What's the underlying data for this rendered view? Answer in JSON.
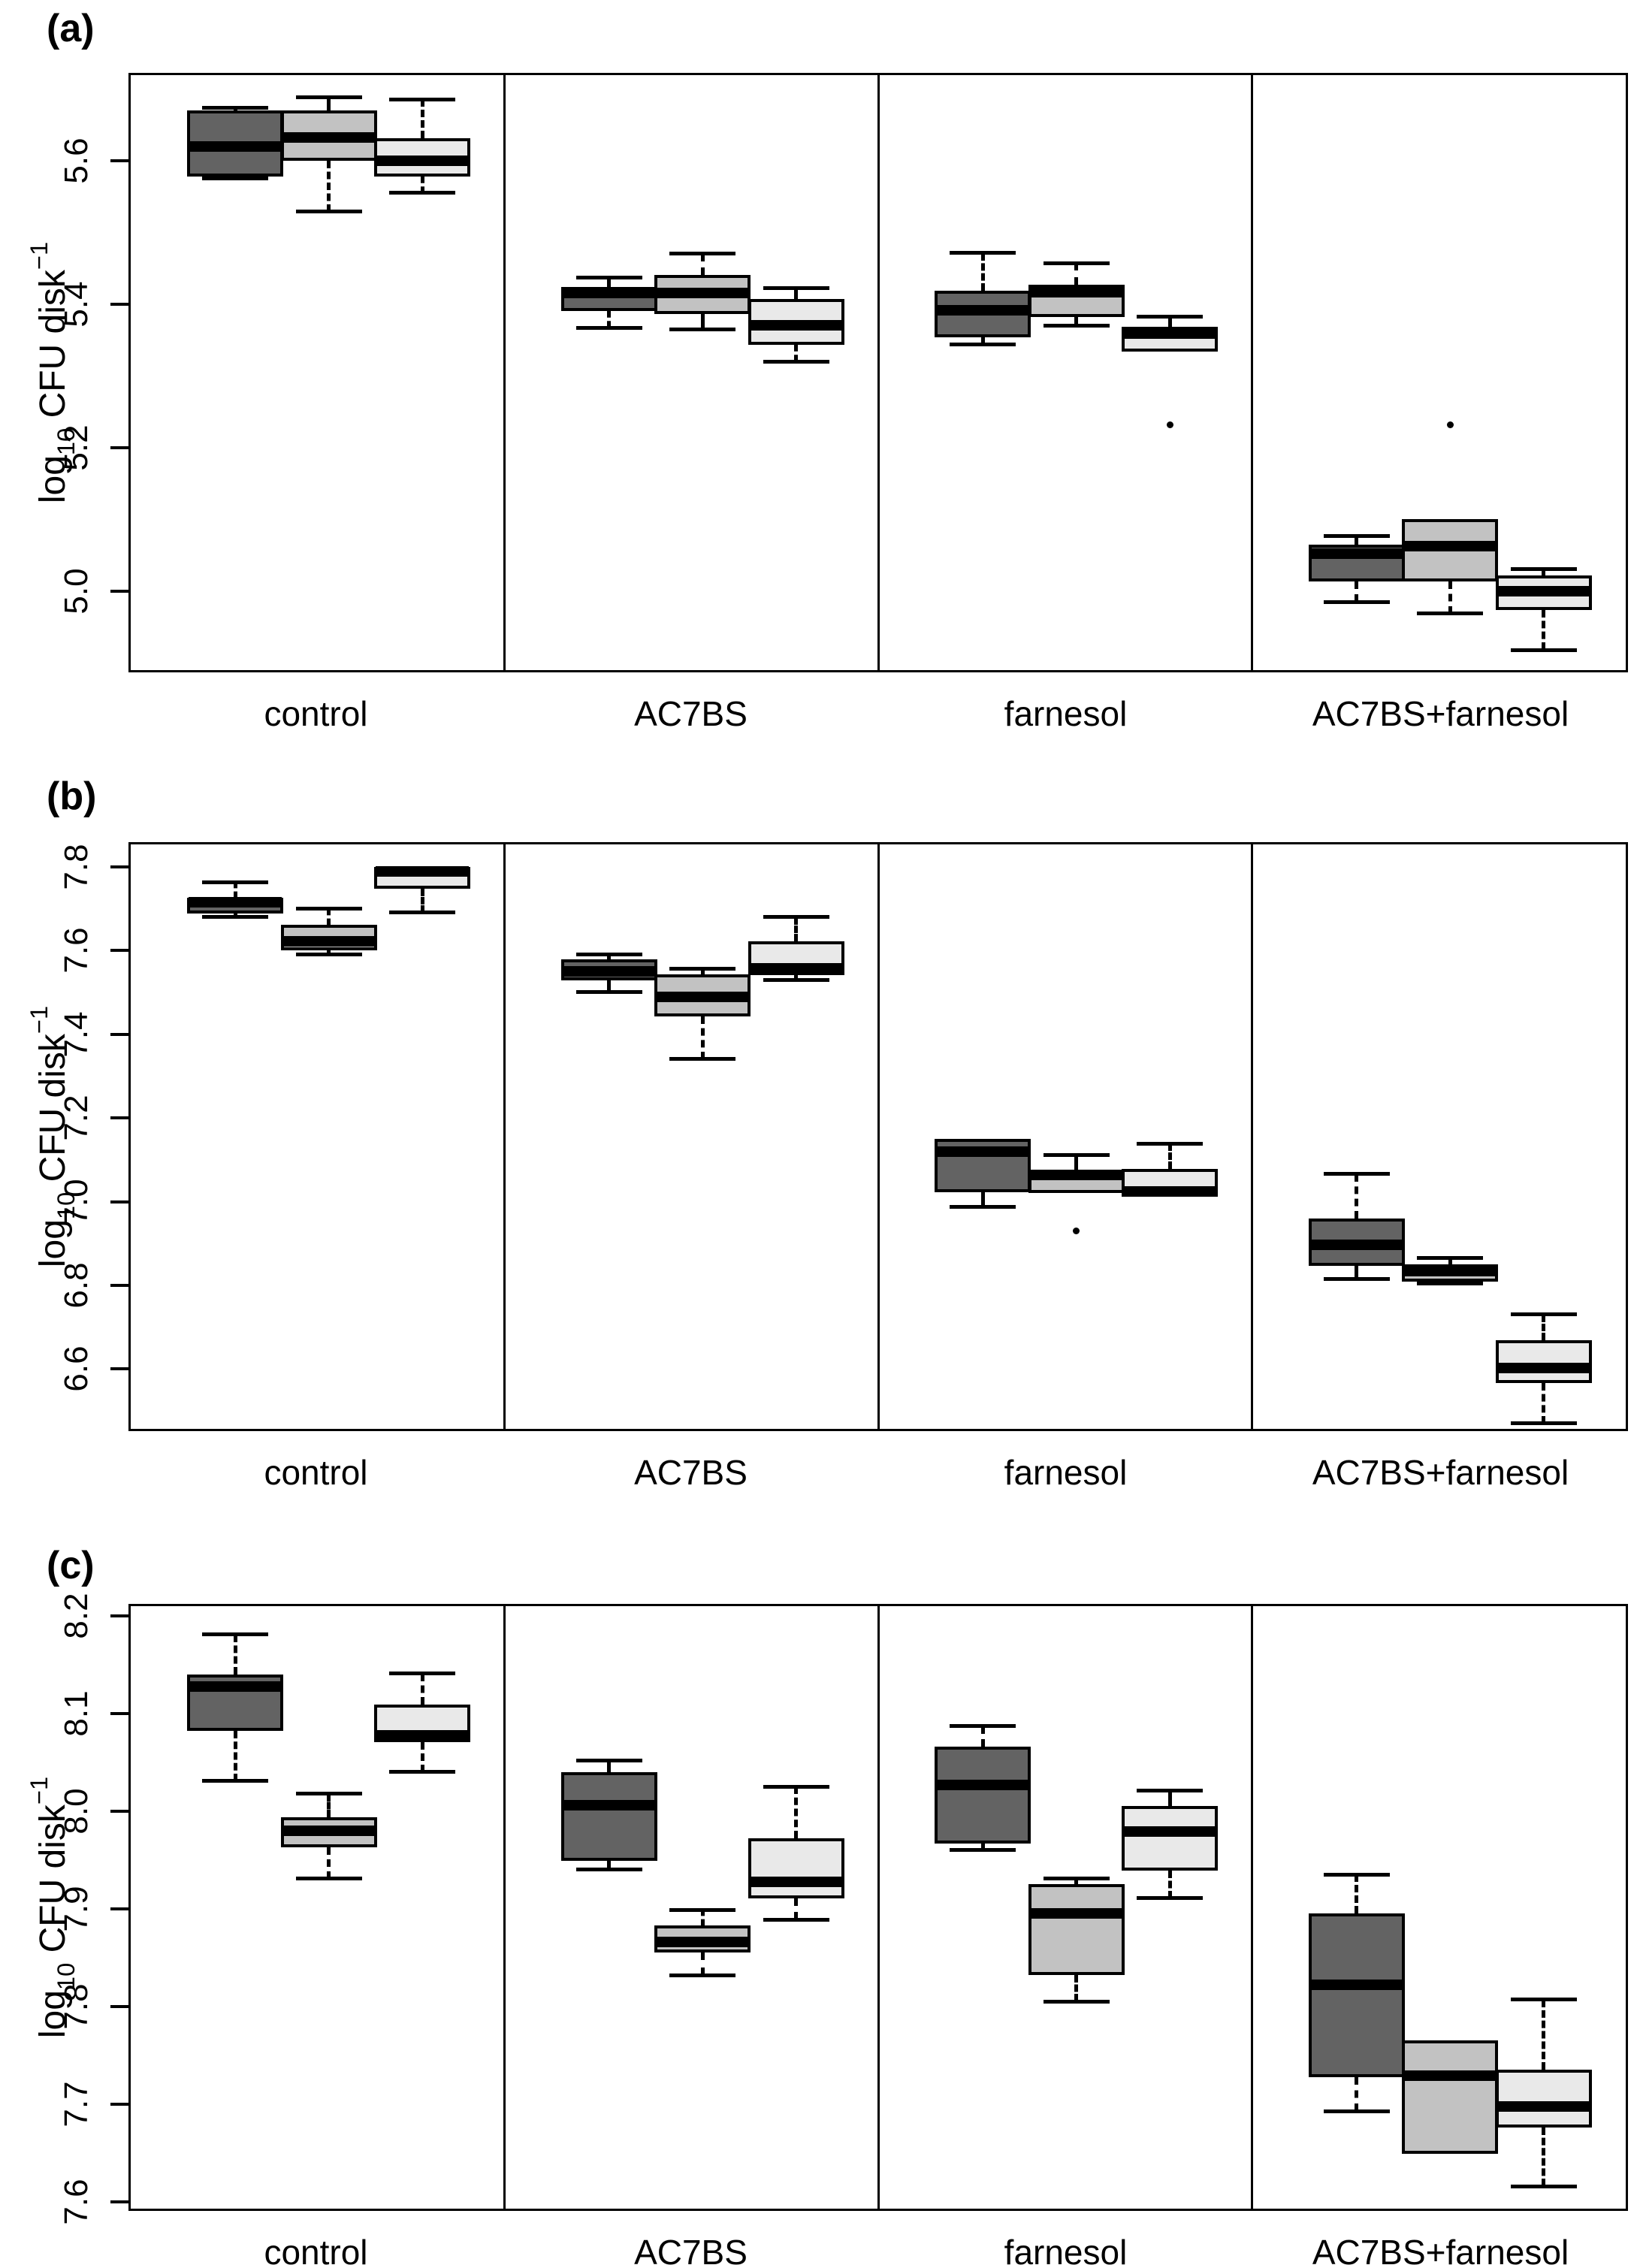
{
  "figure": {
    "panels": [
      "(a)",
      "(b)",
      "(c)"
    ],
    "ylabel": {
      "base": "log",
      "sub": "10",
      "mid": " CFU disk",
      "sup": "−1"
    },
    "axis_color": "#000000",
    "background": "#ffffff"
  },
  "chart_data": [
    {
      "type": "box",
      "panel_label": "(a)",
      "ylabel": "log10 CFU disk^-1",
      "categories": [
        "control",
        "AC7BS",
        "farnesol",
        "AC7BS+farnesol"
      ],
      "series": [
        "dark-gray",
        "medium-gray",
        "light-gray"
      ],
      "series_colors": [
        "#636363",
        "#c2c2c2",
        "#e9e9e9"
      ],
      "ylim": [
        4.89,
        5.719
      ],
      "yticks": [
        5.0,
        5.2,
        5.4,
        5.6
      ],
      "grid": false,
      "groups": [
        {
          "category": "control",
          "boxes": [
            {
              "series": "dark-gray",
              "min": 5.575,
              "q1": 5.578,
              "median": 5.62,
              "q3": 5.67,
              "max": 5.673,
              "outliers": []
            },
            {
              "series": "medium-gray",
              "min": 5.529,
              "q1": 5.6,
              "median": 5.632,
              "q3": 5.67,
              "max": 5.688,
              "outliers": []
            },
            {
              "series": "light-gray",
              "min": 5.555,
              "q1": 5.578,
              "median": 5.6,
              "q3": 5.631,
              "max": 5.685,
              "outliers": []
            }
          ]
        },
        {
          "category": "AC7BS",
          "boxes": [
            {
              "series": "dark-gray",
              "min": 5.367,
              "q1": 5.39,
              "median": 5.415,
              "q3": 5.424,
              "max": 5.437,
              "outliers": []
            },
            {
              "series": "medium-gray",
              "min": 5.365,
              "q1": 5.386,
              "median": 5.415,
              "q3": 5.441,
              "max": 5.47,
              "outliers": []
            },
            {
              "series": "light-gray",
              "min": 5.32,
              "q1": 5.343,
              "median": 5.37,
              "q3": 5.407,
              "max": 5.422,
              "outliers": []
            }
          ]
        },
        {
          "category": "farnesol",
          "boxes": [
            {
              "series": "dark-gray",
              "min": 5.344,
              "q1": 5.354,
              "median": 5.391,
              "q3": 5.419,
              "max": 5.471,
              "outliers": []
            },
            {
              "series": "medium-gray",
              "min": 5.37,
              "q1": 5.382,
              "median": 5.417,
              "q3": 5.427,
              "max": 5.457,
              "outliers": []
            },
            {
              "series": "light-gray",
              "min": 5.334,
              "q1": 5.334,
              "median": 5.359,
              "q3": 5.368,
              "max": 5.382,
              "outliers": [
                5.232
              ]
            }
          ]
        },
        {
          "category": "AC7BS+farnesol",
          "boxes": [
            {
              "series": "dark-gray",
              "min": 4.985,
              "q1": 5.013,
              "median": 5.052,
              "q3": 5.065,
              "max": 5.077,
              "outliers": []
            },
            {
              "series": "medium-gray",
              "min": 4.969,
              "q1": 5.013,
              "median": 5.063,
              "q3": 5.1,
              "max": 5.1,
              "outliers": [
                5.232
              ]
            },
            {
              "series": "light-gray",
              "min": 4.918,
              "q1": 4.974,
              "median": 5.0,
              "q3": 5.022,
              "max": 5.031,
              "outliers": []
            }
          ]
        }
      ]
    },
    {
      "type": "box",
      "panel_label": "(b)",
      "ylabel": "log10 CFU disk^-1",
      "categories": [
        "control",
        "AC7BS",
        "farnesol",
        "AC7BS+farnesol"
      ],
      "series": [
        "dark-gray",
        "medium-gray",
        "light-gray"
      ],
      "series_colors": [
        "#636363",
        "#c2c2c2",
        "#e9e9e9"
      ],
      "ylim": [
        6.457,
        7.854
      ],
      "yticks": [
        6.6,
        6.8,
        7.0,
        7.2,
        7.4,
        7.6,
        7.8
      ],
      "grid": false,
      "groups": [
        {
          "category": "control",
          "boxes": [
            {
              "series": "dark-gray",
              "min": 7.68,
              "q1": 7.689,
              "median": 7.715,
              "q3": 7.727,
              "max": 7.764,
              "outliers": []
            },
            {
              "series": "medium-gray",
              "min": 7.591,
              "q1": 7.6,
              "median": 7.623,
              "q3": 7.662,
              "max": 7.7,
              "outliers": []
            },
            {
              "series": "light-gray",
              "min": 7.691,
              "q1": 7.748,
              "median": 7.789,
              "q3": 7.8,
              "max": 7.8,
              "outliers": []
            }
          ]
        },
        {
          "category": "AC7BS",
          "boxes": [
            {
              "series": "dark-gray",
              "min": 7.502,
              "q1": 7.529,
              "median": 7.55,
              "q3": 7.579,
              "max": 7.591,
              "outliers": []
            },
            {
              "series": "medium-gray",
              "min": 7.341,
              "q1": 7.443,
              "median": 7.489,
              "q3": 7.543,
              "max": 7.557,
              "outliers": []
            },
            {
              "series": "light-gray",
              "min": 7.53,
              "q1": 7.541,
              "median": 7.557,
              "q3": 7.623,
              "max": 7.68,
              "outliers": []
            }
          ]
        },
        {
          "category": "farnesol",
          "boxes": [
            {
              "series": "dark-gray",
              "min": 6.988,
              "q1": 7.022,
              "median": 7.12,
              "q3": 7.15,
              "max": 7.15,
              "outliers": []
            },
            {
              "series": "medium-gray",
              "min": 7.02,
              "q1": 7.02,
              "median": 7.064,
              "q3": 7.075,
              "max": 7.111,
              "outliers": [
                6.93
              ]
            },
            {
              "series": "light-gray",
              "min": 7.011,
              "q1": 7.011,
              "median": 7.025,
              "q3": 7.079,
              "max": 7.139,
              "outliers": []
            }
          ]
        },
        {
          "category": "AC7BS+farnesol",
          "boxes": [
            {
              "series": "dark-gray",
              "min": 6.816,
              "q1": 6.846,
              "median": 6.897,
              "q3": 6.959,
              "max": 7.066,
              "outliers": []
            },
            {
              "series": "medium-gray",
              "min": 6.804,
              "q1": 6.809,
              "median": 6.834,
              "q3": 6.85,
              "max": 6.866,
              "outliers": []
            },
            {
              "series": "light-gray",
              "min": 6.47,
              "q1": 6.566,
              "median": 6.602,
              "q3": 6.668,
              "max": 6.73,
              "outliers": []
            }
          ]
        }
      ]
    },
    {
      "type": "box",
      "panel_label": "(c)",
      "ylabel": "log10 CFU disk^-1",
      "categories": [
        "control",
        "AC7BS",
        "farnesol",
        "AC7BS+farnesol"
      ],
      "series": [
        "dark-gray",
        "medium-gray",
        "light-gray"
      ],
      "series_colors": [
        "#636363",
        "#c2c2c2",
        "#e9e9e9"
      ],
      "ylim": [
        7.593,
        8.21
      ],
      "yticks": [
        7.6,
        7.7,
        7.8,
        7.9,
        8.0,
        8.1,
        8.2
      ],
      "grid": false,
      "groups": [
        {
          "category": "control",
          "boxes": [
            {
              "series": "dark-gray",
              "min": 8.031,
              "q1": 8.082,
              "median": 8.128,
              "q3": 8.14,
              "max": 8.181,
              "outliers": []
            },
            {
              "series": "medium-gray",
              "min": 7.931,
              "q1": 7.963,
              "median": 7.98,
              "q3": 7.994,
              "max": 8.018,
              "outliers": []
            },
            {
              "series": "light-gray",
              "min": 8.04,
              "q1": 8.071,
              "median": 8.078,
              "q3": 8.109,
              "max": 8.141,
              "outliers": []
            }
          ]
        },
        {
          "category": "AC7BS",
          "boxes": [
            {
              "series": "dark-gray",
              "min": 7.94,
              "q1": 7.949,
              "median": 8.006,
              "q3": 8.04,
              "max": 8.052,
              "outliers": []
            },
            {
              "series": "medium-gray",
              "min": 7.832,
              "q1": 7.855,
              "median": 7.866,
              "q3": 7.883,
              "max": 7.899,
              "outliers": []
            },
            {
              "series": "light-gray",
              "min": 7.889,
              "q1": 7.911,
              "median": 7.928,
              "q3": 7.972,
              "max": 8.025,
              "outliers": []
            }
          ]
        },
        {
          "category": "farnesol",
          "boxes": [
            {
              "series": "dark-gray",
              "min": 7.96,
              "q1": 7.967,
              "median": 8.027,
              "q3": 8.066,
              "max": 8.087,
              "outliers": []
            },
            {
              "series": "medium-gray",
              "min": 7.805,
              "q1": 7.832,
              "median": 7.895,
              "q3": 7.925,
              "max": 7.931,
              "outliers": []
            },
            {
              "series": "light-gray",
              "min": 7.911,
              "q1": 7.939,
              "median": 7.979,
              "q3": 8.005,
              "max": 8.021,
              "outliers": []
            }
          ]
        },
        {
          "category": "AC7BS+farnesol",
          "boxes": [
            {
              "series": "dark-gray",
              "min": 7.693,
              "q1": 7.728,
              "median": 7.822,
              "q3": 7.895,
              "max": 7.935,
              "outliers": []
            },
            {
              "series": "medium-gray",
              "min": 7.649,
              "q1": 7.649,
              "median": 7.729,
              "q3": 7.765,
              "max": 7.765,
              "outliers": []
            },
            {
              "series": "light-gray",
              "min": 7.616,
              "q1": 7.676,
              "median": 7.698,
              "q3": 7.735,
              "max": 7.807,
              "outliers": []
            }
          ]
        }
      ]
    }
  ]
}
